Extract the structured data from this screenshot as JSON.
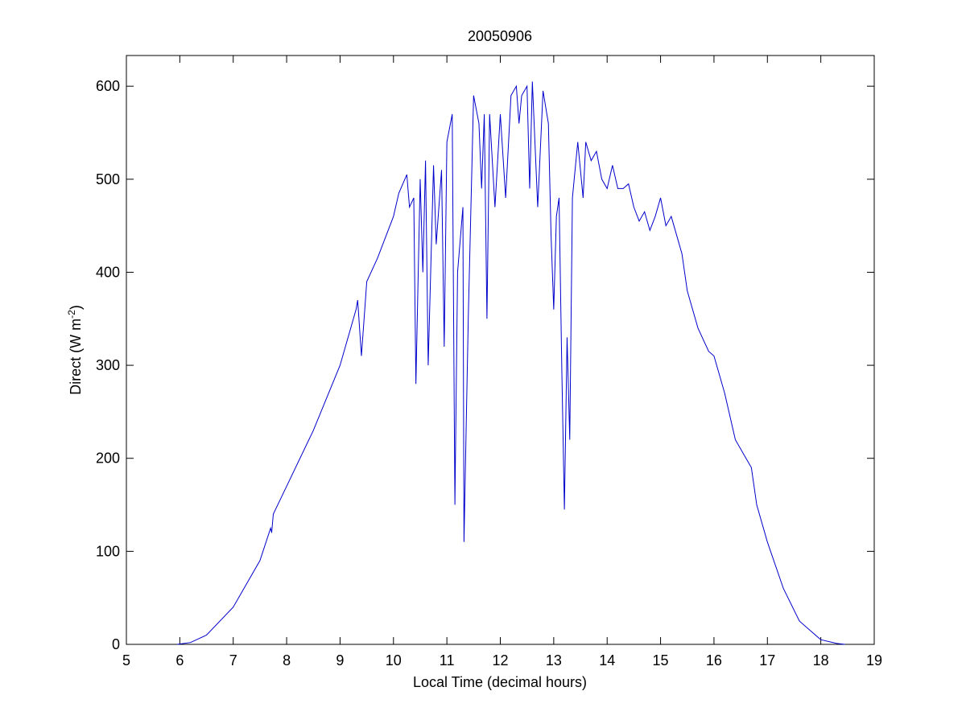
{
  "chart_data": {
    "type": "line",
    "title": "20050906",
    "xlabel": "Local Time (decimal hours)",
    "ylabel": {
      "text": "Direct (W m",
      "sup": "-2",
      "end": ")"
    },
    "xlim": [
      5,
      19
    ],
    "ylim": [
      0,
      633
    ],
    "xticks": [
      5,
      6,
      7,
      8,
      9,
      10,
      11,
      12,
      13,
      14,
      15,
      16,
      17,
      18,
      19
    ],
    "yticks": [
      0,
      100,
      200,
      300,
      400,
      500,
      600
    ],
    "grid": false,
    "series": [
      {
        "name": "Direct",
        "color": "#0000cc",
        "x": [
          5.95,
          6.2,
          6.5,
          7,
          7.5,
          7.7,
          7.72,
          7.75,
          8,
          8.5,
          9,
          9.3,
          9.33,
          9.4,
          9.5,
          9.7,
          10,
          10.1,
          10.25,
          10.3,
          10.38,
          10.42,
          10.5,
          10.55,
          10.6,
          10.65,
          10.75,
          10.8,
          10.9,
          10.95,
          11.0,
          11.1,
          11.15,
          11.2,
          11.3,
          11.32,
          11.4,
          11.5,
          11.6,
          11.65,
          11.7,
          11.75,
          11.8,
          11.9,
          12,
          12.1,
          12.2,
          12.3,
          12.35,
          12.4,
          12.5,
          12.55,
          12.6,
          12.7,
          12.8,
          12.9,
          12.95,
          13.0,
          13.05,
          13.1,
          13.15,
          13.2,
          13.25,
          13.3,
          13.35,
          13.45,
          13.55,
          13.6,
          13.7,
          13.8,
          13.9,
          14,
          14.1,
          14.2,
          14.3,
          14.4,
          14.5,
          14.6,
          14.7,
          14.8,
          14.9,
          15.0,
          15.1,
          15.2,
          15.3,
          15.4,
          15.5,
          15.7,
          15.9,
          16,
          16.2,
          16.4,
          16.6,
          16.7,
          16.8,
          17,
          17.3,
          17.6,
          18,
          18.3,
          18.45
        ],
        "values": [
          0,
          2,
          10,
          40,
          90,
          125,
          120,
          140,
          170,
          230,
          300,
          360,
          370,
          310,
          390,
          415,
          460,
          485,
          505,
          470,
          480,
          280,
          500,
          400,
          520,
          300,
          515,
          430,
          510,
          320,
          540,
          570,
          150,
          400,
          470,
          110,
          350,
          590,
          560,
          490,
          570,
          350,
          570,
          470,
          570,
          480,
          590,
          600,
          560,
          590,
          600,
          490,
          605,
          470,
          595,
          560,
          440,
          360,
          460,
          480,
          300,
          145,
          330,
          220,
          480,
          540,
          480,
          540,
          520,
          530,
          500,
          490,
          515,
          490,
          490,
          495,
          470,
          455,
          465,
          445,
          460,
          480,
          450,
          460,
          440,
          420,
          380,
          340,
          315,
          310,
          270,
          220,
          200,
          190,
          150,
          110,
          60,
          25,
          5,
          1,
          0
        ]
      }
    ]
  }
}
